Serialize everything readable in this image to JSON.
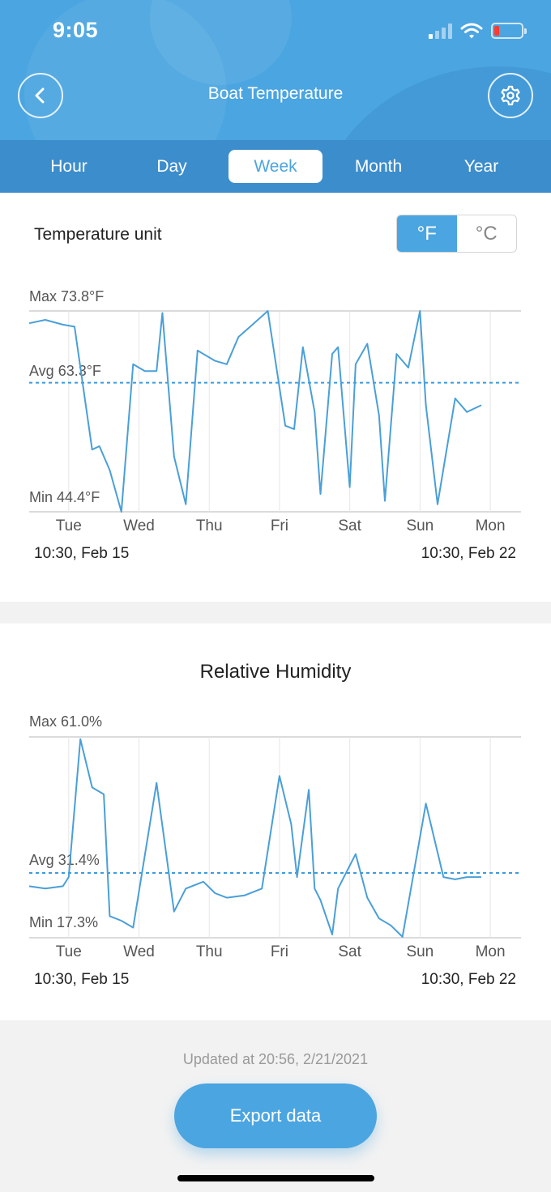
{
  "status": {
    "time": "9:05"
  },
  "header": {
    "title": "Boat Temperature"
  },
  "tabs": [
    "Hour",
    "Day",
    "Week",
    "Month",
    "Year"
  ],
  "active_tab": "Week",
  "temperature": {
    "unit_label": "Temperature unit",
    "unit_f": "°F",
    "unit_c": "°C",
    "selected_unit": "°F",
    "max_label": "Max 73.8°F",
    "avg_label": "Avg 63.3°F",
    "min_label": "Min 44.4°F",
    "start": "10:30,  Feb 15",
    "end": "10:30,  Feb 22"
  },
  "humidity": {
    "title": "Relative Humidity",
    "max_label": "Max 61.0%",
    "avg_label": "Avg 31.4%",
    "min_label": "Min 17.3%",
    "start": "10:30,  Feb 15",
    "end": "10:30,  Feb 22"
  },
  "updated": "Updated at 20:56,  2/21/2021",
  "export_label": "Export data",
  "colors": {
    "accent": "#4ba5e0",
    "line": "#4a9fd8"
  },
  "chart_data": [
    {
      "type": "line",
      "title": "",
      "x": [
        "Feb 15 10:30",
        "Feb 15 16:00",
        "Feb 15 22:00",
        "Feb 16 02:00",
        "Feb 16 08:00",
        "Feb 16 10:30",
        "Feb 16 14:00",
        "Feb 16 18:00",
        "Feb 16 22:00",
        "Feb 17 02:00",
        "Feb 17 06:00",
        "Feb 17 08:00",
        "Feb 17 12:00",
        "Feb 17 16:00",
        "Feb 17 20:00",
        "Feb 18 02:00",
        "Feb 18 06:00",
        "Feb 18 10:00",
        "Feb 18 14:00",
        "Feb 18 20:00",
        "Feb 19 02:00",
        "Feb 19 05:00",
        "Feb 19 08:00",
        "Feb 19 12:00",
        "Feb 19 14:00",
        "Feb 19 18:00",
        "Feb 19 20:00",
        "Feb 20 00:00",
        "Feb 20 02:00",
        "Feb 20 06:00",
        "Feb 20 10:00",
        "Feb 20 12:00",
        "Feb 20 16:00",
        "Feb 20 20:00",
        "Feb 21 00:00",
        "Feb 21 02:00",
        "Feb 21 06:00",
        "Feb 21 12:00",
        "Feb 21 16:00",
        "Feb 21 20:56"
      ],
      "y": [
        72.0,
        72.5,
        71.8,
        71.5,
        53.5,
        54.0,
        50.5,
        44.4,
        66.0,
        65.0,
        65.0,
        73.5,
        52.5,
        45.5,
        68.0,
        66.5,
        66.0,
        70.0,
        71.5,
        73.8,
        57.0,
        56.5,
        68.5,
        59.0,
        47.0,
        67.5,
        68.5,
        48.0,
        66.0,
        69.0,
        58.5,
        46.0,
        67.5,
        65.5,
        73.8,
        60.0,
        45.5,
        61.0,
        59.0,
        60.0
      ],
      "categories": [
        "Tue",
        "Wed",
        "Thu",
        "Fri",
        "Sat",
        "Sun",
        "Mon"
      ],
      "ylabel": "°F",
      "max": 73.8,
      "avg": 63.3,
      "min": 44.4,
      "ylim": [
        44.4,
        73.8
      ],
      "grid": true
    },
    {
      "type": "line",
      "title": "Relative Humidity",
      "x": [
        "Feb 15 10:30",
        "Feb 15 16:00",
        "Feb 15 22:00",
        "Feb 16 00:00",
        "Feb 16 04:00",
        "Feb 16 08:00",
        "Feb 16 12:00",
        "Feb 16 14:00",
        "Feb 16 18:00",
        "Feb 16 22:00",
        "Feb 17 06:00",
        "Feb 17 12:00",
        "Feb 17 16:00",
        "Feb 17 22:00",
        "Feb 18 02:00",
        "Feb 18 06:00",
        "Feb 18 12:00",
        "Feb 18 18:00",
        "Feb 19 00:00",
        "Feb 19 04:00",
        "Feb 19 06:00",
        "Feb 19 10:00",
        "Feb 19 12:00",
        "Feb 19 14:00",
        "Feb 19 18:00",
        "Feb 19 20:00",
        "Feb 20 02:00",
        "Feb 20 06:00",
        "Feb 20 10:00",
        "Feb 20 14:00",
        "Feb 20 18:00",
        "Feb 21 02:00",
        "Feb 21 08:00",
        "Feb 21 12:00",
        "Feb 21 16:00",
        "Feb 21 20:56"
      ],
      "y": [
        28.5,
        28.0,
        28.5,
        30.5,
        60.5,
        50.0,
        48.5,
        22.0,
        21.0,
        19.5,
        51.0,
        23.0,
        28.0,
        29.5,
        27.0,
        26.0,
        26.5,
        28.0,
        52.5,
        42.0,
        30.5,
        49.5,
        28.0,
        25.5,
        18.0,
        28.0,
        35.5,
        26.0,
        21.5,
        20.0,
        17.5,
        46.5,
        30.5,
        30.0,
        30.5,
        30.5
      ],
      "categories": [
        "Tue",
        "Wed",
        "Thu",
        "Fri",
        "Sat",
        "Sun",
        "Mon"
      ],
      "ylabel": "%",
      "max": 61.0,
      "avg": 31.4,
      "min": 17.3,
      "ylim": [
        17.3,
        61.0
      ],
      "grid": true
    }
  ]
}
